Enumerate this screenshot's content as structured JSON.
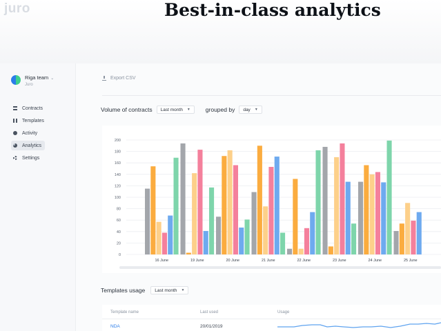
{
  "hero": {
    "logo": "juro",
    "title": "Best-in-class analytics"
  },
  "sidebar": {
    "team_name": "Riga team",
    "team_sub": "Juro",
    "items": [
      {
        "label": "Contracts",
        "icon": "contracts-icon"
      },
      {
        "label": "Templates",
        "icon": "templates-icon"
      },
      {
        "label": "Activity",
        "icon": "activity-icon"
      },
      {
        "label": "Analytics",
        "icon": "analytics-icon",
        "active": true
      },
      {
        "label": "Settings",
        "icon": "settings-icon"
      }
    ]
  },
  "toolbar": {
    "export_label": "Export CSV"
  },
  "volume": {
    "title": "Volume of contracts",
    "period": "Last month",
    "grouped_by_label": "grouped by",
    "group": "day"
  },
  "colors": [
    "#a3a6ab",
    "#fbac3f",
    "#fdd08a",
    "#f4809c",
    "#6eaaef",
    "#7ed5ab"
  ],
  "chart_data": {
    "type": "bar",
    "categories": [
      "16 June",
      "19 June",
      "20 June",
      "21 June",
      "22 June",
      "23 June",
      "24 June",
      "25 June"
    ],
    "ylim": [
      0,
      200
    ],
    "yticks": [
      0,
      20,
      40,
      60,
      80,
      100,
      120,
      140,
      160,
      180,
      200
    ],
    "grid": true,
    "series": [
      {
        "values": [
          115,
          194,
          66,
          109,
          10,
          188,
          127,
          41
        ]
      },
      {
        "values": [
          154,
          3,
          172,
          190,
          132,
          14,
          156,
          54
        ]
      },
      {
        "values": [
          57,
          142,
          182,
          84,
          10,
          170,
          140,
          90
        ]
      },
      {
        "values": [
          38,
          183,
          156,
          153,
          46,
          194,
          144,
          59
        ]
      },
      {
        "values": [
          68,
          41,
          47,
          171,
          74,
          127,
          126,
          74
        ]
      },
      {
        "values": [
          169,
          117,
          61,
          38,
          182,
          54,
          199,
          0
        ]
      }
    ]
  },
  "templates_usage": {
    "title": "Templates usage",
    "period": "Last month",
    "columns": [
      "Template name",
      "Last used",
      "Usage"
    ],
    "rows": [
      {
        "name": "NDA",
        "last_used": "20/01/2019"
      }
    ]
  }
}
